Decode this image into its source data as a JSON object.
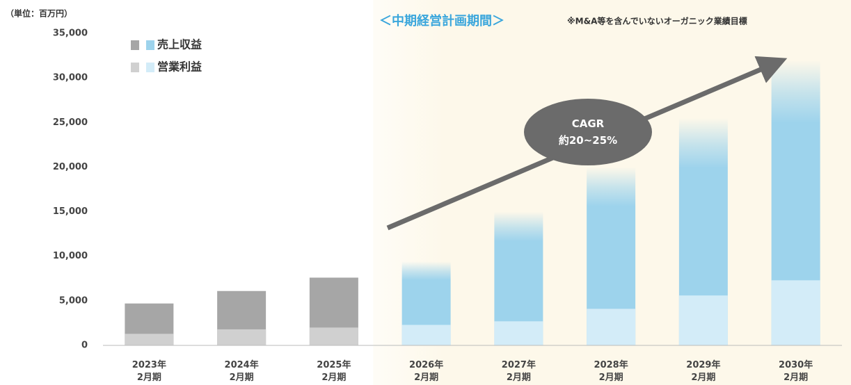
{
  "chart_data": {
    "type": "bar",
    "unit_label": "（単位：百万円）",
    "note": "※M&A等を含んでいないオーガニック業績目標",
    "highlight": {
      "label": "＜中期経営計画期間＞",
      "from": "2026年\n2月期"
    },
    "annotation": "CAGR\n約20~25%",
    "categories": [
      "2023年\n2月期",
      "2024年\n2月期",
      "2025年\n2月期",
      "2026年\n2月期",
      "2027年\n2月期",
      "2028年\n2月期",
      "2029年\n2月期",
      "2030年\n2月期"
    ],
    "series": [
      {
        "name": "売上収益",
        "colors": [
          "#a6a6a6",
          "#9dd3ec"
        ],
        "values": [
          4700,
          6100,
          7600,
          9400,
          15000,
          20000,
          25500,
          32000
        ]
      },
      {
        "name": "営業利益",
        "colors": [
          "#d0d0d0",
          "#d3ecf8"
        ],
        "values": [
          1300,
          1800,
          2000,
          2300,
          2700,
          4100,
          5600,
          7300
        ]
      }
    ],
    "ylim": [
      0,
      35000
    ],
    "yticks": [
      0,
      {
        "value": 5000,
        "label": "5,000"
      },
      {
        "value": 10000,
        "label": "10,000"
      },
      {
        "value": 15000,
        "label": "15,000"
      },
      {
        "value": 20000,
        "label": "20,000"
      },
      {
        "value": 25000,
        "label": "25,000"
      },
      {
        "value": 30000,
        "label": "30,000"
      },
      {
        "value": 35000,
        "label": "35,000"
      }
    ]
  }
}
